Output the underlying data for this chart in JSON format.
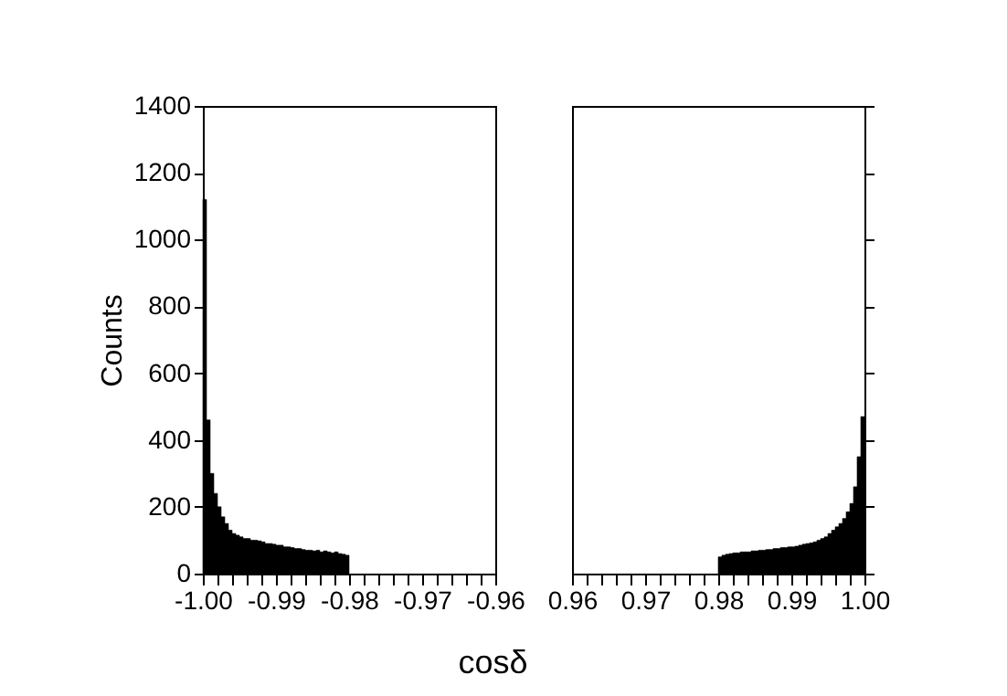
{
  "chart_data": [
    {
      "type": "histogram",
      "ylabel": "Counts",
      "xlabel": "cosδ",
      "color": "#000000",
      "bins": [
        -1.0,
        -0.9995,
        -0.999,
        -0.9985,
        -0.998,
        -0.9975,
        -0.997,
        -0.9965,
        -0.996,
        -0.9955,
        -0.995,
        -0.9945,
        -0.994,
        -0.9935,
        -0.993,
        -0.9925,
        -0.992,
        -0.9915,
        -0.991,
        -0.9905,
        -0.99,
        -0.9895,
        -0.989,
        -0.9885,
        -0.988,
        -0.9875,
        -0.987,
        -0.9865,
        -0.986,
        -0.9855,
        -0.985,
        -0.9845,
        -0.984,
        -0.9835,
        -0.983,
        -0.9825,
        -0.982,
        -0.9815,
        -0.981,
        -0.9805,
        -0.98
      ],
      "values": [
        1120,
        460,
        300,
        240,
        200,
        170,
        150,
        130,
        120,
        115,
        110,
        105,
        105,
        100,
        100,
        98,
        95,
        90,
        90,
        88,
        85,
        85,
        80,
        80,
        78,
        75,
        75,
        72,
        70,
        70,
        68,
        70,
        65,
        68,
        65,
        62,
        65,
        60,
        58,
        55
      ],
      "xlim": [
        -1.0,
        -0.96
      ],
      "xticks": [
        {
          "value": -1.0,
          "label": "-1.00"
        },
        {
          "value": -0.998,
          "label": null
        },
        {
          "value": -0.996,
          "label": null
        },
        {
          "value": -0.994,
          "label": null
        },
        {
          "value": -0.992,
          "label": null
        },
        {
          "value": -0.99,
          "label": "-0.99"
        },
        {
          "value": -0.988,
          "label": null
        },
        {
          "value": -0.986,
          "label": null
        },
        {
          "value": -0.984,
          "label": null
        },
        {
          "value": -0.982,
          "label": null
        },
        {
          "value": -0.98,
          "label": "-0.98"
        },
        {
          "value": -0.978,
          "label": null
        },
        {
          "value": -0.976,
          "label": null
        },
        {
          "value": -0.974,
          "label": null
        },
        {
          "value": -0.972,
          "label": null
        },
        {
          "value": -0.97,
          "label": "-0.97"
        },
        {
          "value": -0.968,
          "label": null
        },
        {
          "value": -0.966,
          "label": null
        },
        {
          "value": -0.964,
          "label": null
        },
        {
          "value": -0.962,
          "label": null
        },
        {
          "value": -0.96,
          "label": "-0.96"
        }
      ],
      "ylim": [
        0,
        1400
      ],
      "yticks": [
        0,
        200,
        400,
        600,
        800,
        1000,
        1200,
        1400
      ],
      "grid": false
    },
    {
      "type": "histogram",
      "color": "#000000",
      "tick_labels": "x",
      "bins": [
        0.98,
        0.9805,
        0.981,
        0.9815,
        0.982,
        0.9825,
        0.983,
        0.9835,
        0.984,
        0.9845,
        0.985,
        0.9855,
        0.986,
        0.9865,
        0.987,
        0.9875,
        0.988,
        0.9885,
        0.989,
        0.9895,
        0.99,
        0.9905,
        0.991,
        0.9915,
        0.992,
        0.9925,
        0.993,
        0.9935,
        0.994,
        0.9945,
        0.995,
        0.9955,
        0.996,
        0.9965,
        0.997,
        0.9975,
        0.998,
        0.9985,
        0.999,
        0.9995,
        1.0
      ],
      "values": [
        50,
        55,
        58,
        60,
        62,
        62,
        65,
        65,
        65,
        68,
        68,
        70,
        70,
        72,
        72,
        75,
        75,
        78,
        78,
        80,
        80,
        82,
        85,
        88,
        90,
        92,
        95,
        100,
        105,
        110,
        120,
        130,
        140,
        150,
        165,
        185,
        210,
        260,
        350,
        470
      ],
      "xlim": [
        0.96,
        1.0
      ],
      "xticks": [
        {
          "value": 0.96,
          "label": "0.96"
        },
        {
          "value": 0.962,
          "label": null
        },
        {
          "value": 0.964,
          "label": null
        },
        {
          "value": 0.966,
          "label": null
        },
        {
          "value": 0.968,
          "label": null
        },
        {
          "value": 0.97,
          "label": "0.97"
        },
        {
          "value": 0.972,
          "label": null
        },
        {
          "value": 0.974,
          "label": null
        },
        {
          "value": 0.976,
          "label": null
        },
        {
          "value": 0.978,
          "label": null
        },
        {
          "value": 0.98,
          "label": "0.98"
        },
        {
          "value": 0.982,
          "label": null
        },
        {
          "value": 0.984,
          "label": null
        },
        {
          "value": 0.986,
          "label": null
        },
        {
          "value": 0.988,
          "label": null
        },
        {
          "value": 0.99,
          "label": "0.99"
        },
        {
          "value": 0.992,
          "label": null
        },
        {
          "value": 0.994,
          "label": null
        },
        {
          "value": 0.996,
          "label": null
        },
        {
          "value": 0.998,
          "label": null
        },
        {
          "value": 1.0,
          "label": "1.00"
        }
      ],
      "ylim": [
        0,
        1400
      ],
      "yticks": [
        0,
        200,
        400,
        600,
        800,
        1000,
        1200,
        1400
      ],
      "grid": false
    }
  ]
}
